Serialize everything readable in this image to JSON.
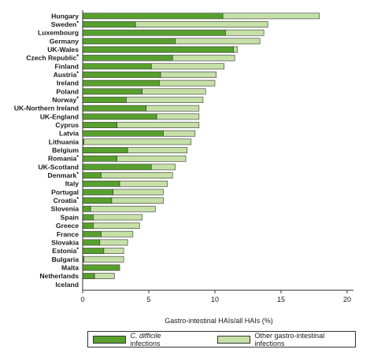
{
  "colors": {
    "cdiff": "#58a02e",
    "other": "#c6e0a8",
    "stroke": "#333333",
    "axis": "#333333"
  },
  "chart_data": {
    "type": "bar",
    "orientation": "horizontal",
    "stacked": true,
    "xlabel": "Gastro-intestinal HAIs/all HAIs (%)",
    "xlim": [
      0,
      20
    ],
    "xticks": [
      "0",
      "5",
      "10",
      "15",
      "20"
    ],
    "legend_placement": "bottom",
    "categories": [
      "Hungary",
      "Sweden",
      "Luxembourg",
      "Germany",
      "UK-Wales",
      "Czech Republic",
      "Finland",
      "Austria",
      "Ireland",
      "Poland",
      "Norway",
      "UK-Northern Ireland",
      "UK-England",
      "Cyprus",
      "Latvia",
      "Lithuania",
      "Belgium",
      "Romania",
      "UK-Scotland",
      "Denmark",
      "Italy",
      "Portugal",
      "Croatia",
      "Slovenia",
      "Spain",
      "Greece",
      "France",
      "Slovakia",
      "Estonia",
      "Bulgaria",
      "Malta",
      "Netherlands",
      "Iceland"
    ],
    "asterisk": [
      false,
      true,
      false,
      false,
      false,
      true,
      false,
      true,
      false,
      false,
      true,
      false,
      false,
      false,
      false,
      false,
      false,
      true,
      false,
      true,
      false,
      false,
      true,
      false,
      false,
      false,
      false,
      false,
      true,
      false,
      false,
      false,
      false
    ],
    "asterisk_mark": "*",
    "series": [
      {
        "name": "C. difficile infections",
        "values": [
          10.6,
          4.0,
          10.8,
          7.0,
          11.4,
          6.8,
          5.2,
          5.9,
          5.8,
          4.5,
          3.3,
          4.8,
          5.6,
          2.6,
          6.1,
          0.1,
          3.4,
          2.6,
          5.2,
          1.4,
          2.8,
          2.3,
          2.2,
          0.6,
          0.8,
          0.8,
          1.4,
          1.3,
          1.6,
          0.1,
          2.8,
          0.9,
          0.0
        ]
      },
      {
        "name": "Other gastro-intestinal infections",
        "values": [
          7.3,
          10.0,
          2.9,
          6.4,
          0.3,
          4.7,
          5.5,
          4.2,
          4.2,
          4.8,
          5.8,
          4.0,
          3.2,
          6.2,
          2.4,
          8.1,
          4.5,
          5.2,
          1.8,
          5.4,
          3.6,
          3.8,
          3.9,
          4.9,
          3.7,
          3.5,
          2.4,
          2.1,
          1.5,
          3.0,
          0.0,
          1.5,
          0.0
        ]
      }
    ]
  },
  "legend": {
    "cdiff_italic": "C. difficile",
    "cdiff_rest": " infections",
    "other_label": "Other gastro-intestinal infections"
  }
}
